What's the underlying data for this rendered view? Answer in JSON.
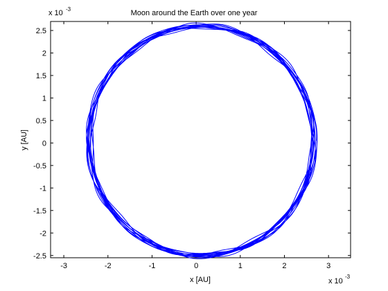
{
  "chart_data": {
    "type": "line",
    "title": "Moon around the Earth over one year",
    "xlabel": "x [AU]",
    "ylabel": "y [AU]",
    "x_multiplier_label": "x 10",
    "x_multiplier_exp": "-3",
    "y_multiplier_label": "x 10",
    "y_multiplier_exp": "-3",
    "xlim": [
      -3.3,
      3.5
    ],
    "ylim": [
      -2.55,
      2.7
    ],
    "xticks": [
      -3,
      -2,
      -1,
      0,
      1,
      2,
      3
    ],
    "xtick_labels": [
      "-3",
      "-2",
      "-1",
      "0",
      "1",
      "2",
      "3"
    ],
    "yticks": [
      -2.5,
      -2,
      -1.5,
      -1,
      -0.5,
      0,
      0.5,
      1,
      1.5,
      2,
      2.5
    ],
    "ytick_labels": [
      "-2.5",
      "-2",
      "-1.5",
      "-1",
      "-0.5",
      "0",
      "0.5",
      "1",
      "1.5",
      "2",
      "2.5"
    ],
    "grid": false,
    "series": [
      {
        "color": "#0000ff",
        "orbit": {
          "center_x": 0.12,
          "center_y": 0.05,
          "radius": 2.55,
          "loops": 13,
          "jitter": 0.06
        }
      }
    ]
  }
}
